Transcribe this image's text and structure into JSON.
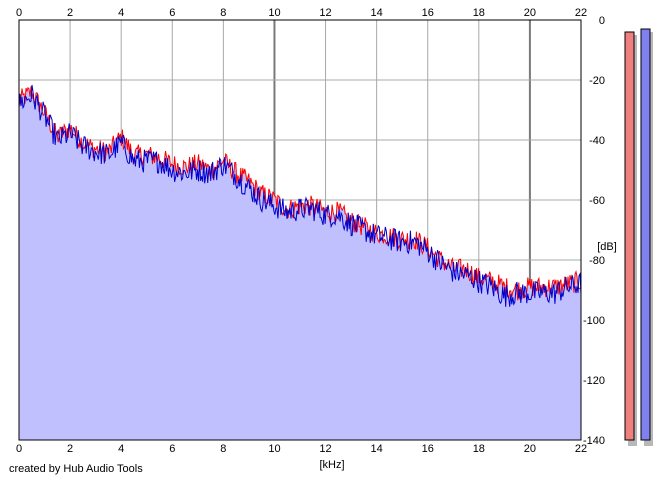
{
  "credit_text": "created by Hub Audio Tools",
  "chart_data": {
    "type": "line",
    "xlabel": "[kHz]",
    "ylabel": "[dB]",
    "xlim": [
      0,
      22
    ],
    "ylim": [
      -140,
      0
    ],
    "x_ticks": [
      0,
      2,
      4,
      6,
      8,
      10,
      12,
      14,
      16,
      18,
      20,
      22
    ],
    "y_ticks": [
      0,
      -20,
      -40,
      -60,
      -80,
      -100,
      -120,
      -140
    ],
    "x_tick_labels": [
      "0",
      "2",
      "4",
      "6",
      "8",
      "10",
      "12",
      "14",
      "16",
      "18",
      "20",
      "22"
    ],
    "y_tick_labels": [
      "0",
      "-20",
      "-40",
      "-60",
      "-80",
      "-100",
      "-120",
      "-140"
    ],
    "grid": true,
    "fill_color": "#c0c0ff",
    "series": [
      {
        "color": "#ff0000",
        "x": [
          0,
          0.5,
          1,
          1.5,
          2,
          2.5,
          3,
          3.5,
          4,
          4.5,
          5,
          5.5,
          6,
          6.5,
          7,
          7.5,
          8,
          8.5,
          9,
          9.5,
          10,
          10.5,
          11,
          11.5,
          12,
          12.5,
          13,
          13.5,
          14,
          14.5,
          15,
          15.5,
          16,
          16.5,
          17,
          17.5,
          18,
          18.5,
          19,
          19.5,
          20,
          20.5,
          21,
          21.5,
          22
        ],
        "y": [
          -27,
          -24,
          -31,
          -39,
          -36,
          -41,
          -43,
          -44,
          -39,
          -45,
          -45,
          -46,
          -48,
          -49,
          -48,
          -50,
          -47,
          -51,
          -54,
          -58,
          -60,
          -63,
          -62,
          -62,
          -64,
          -64,
          -67,
          -69,
          -71,
          -72,
          -73,
          -73,
          -76,
          -80,
          -83,
          -83,
          -86,
          -87,
          -89,
          -90,
          -89,
          -89,
          -89,
          -88,
          -87
        ]
      },
      {
        "color": "#0000cc",
        "x": [
          0,
          0.5,
          1,
          1.5,
          2,
          2.5,
          3,
          3.5,
          4,
          4.5,
          5,
          5.5,
          6,
          6.5,
          7,
          7.5,
          8,
          8.5,
          9,
          9.5,
          10,
          10.5,
          11,
          11.5,
          12,
          12.5,
          13,
          13.5,
          14,
          14.5,
          15,
          15.5,
          16,
          16.5,
          17,
          17.5,
          18,
          18.5,
          19,
          19.5,
          20,
          20.5,
          21,
          21.5,
          22
        ],
        "y": [
          -28,
          -25,
          -32,
          -40,
          -38,
          -42,
          -44,
          -45,
          -41,
          -47,
          -47,
          -47,
          -50,
          -51,
          -50,
          -51,
          -48,
          -52,
          -56,
          -60,
          -62,
          -64,
          -63,
          -63,
          -65,
          -65,
          -68,
          -70,
          -72,
          -73,
          -74,
          -74,
          -77,
          -81,
          -84,
          -85,
          -87,
          -89,
          -92,
          -91,
          -91,
          -91,
          -91,
          -89,
          -88
        ]
      }
    ],
    "level_meters": [
      {
        "color": "#f08080",
        "level_db": -4
      },
      {
        "color": "#8080f0",
        "level_db": -3
      }
    ]
  }
}
